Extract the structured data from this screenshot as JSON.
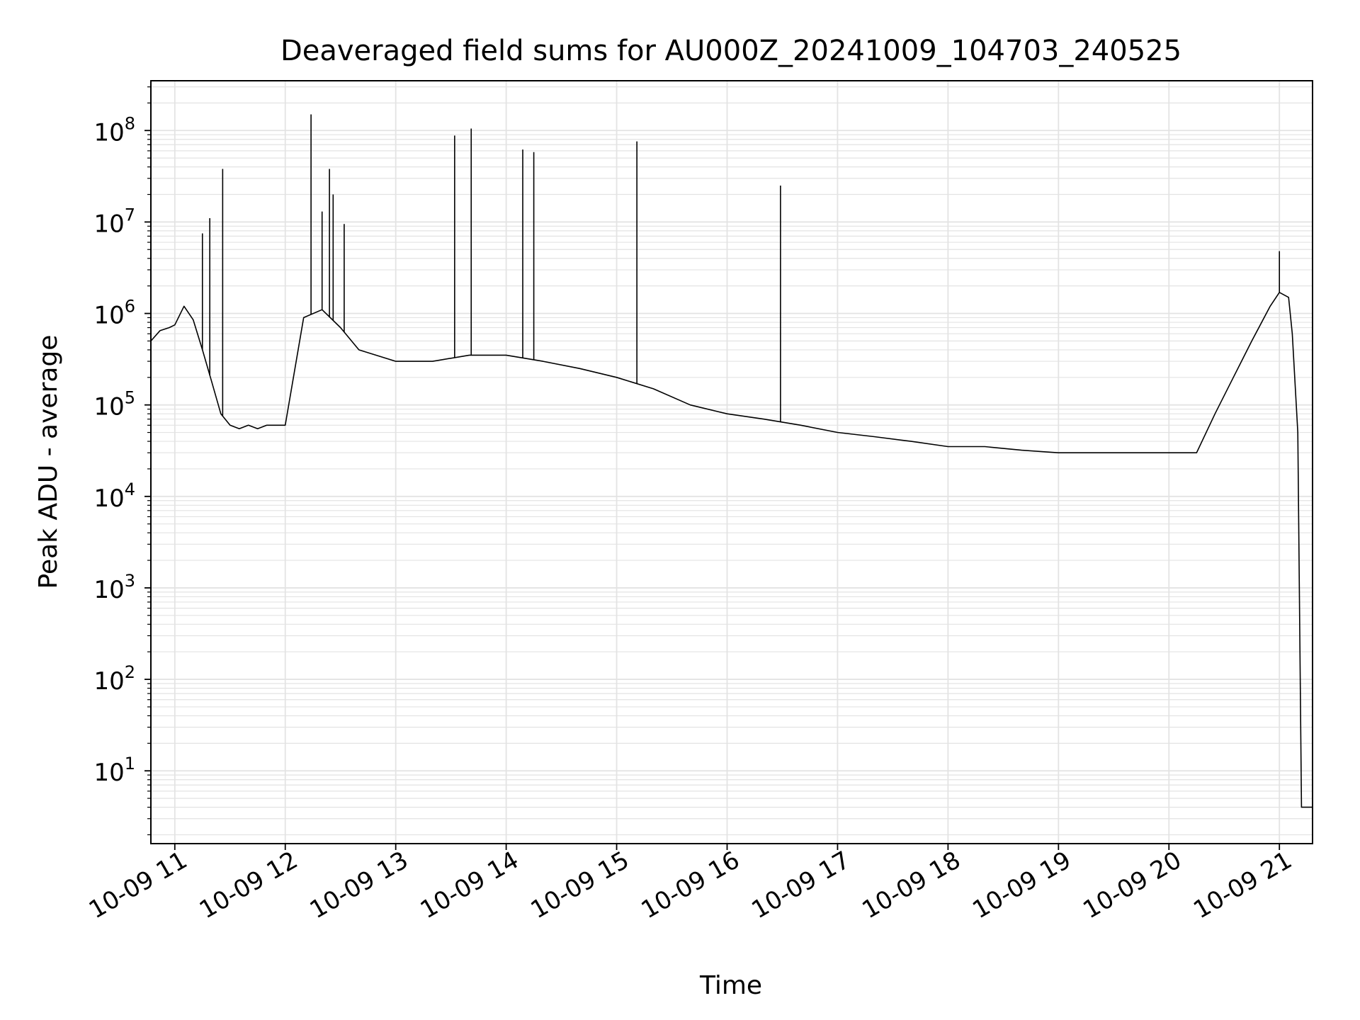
{
  "chart_data": {
    "type": "line",
    "title": "Deaveraged field sums for AU000Z_20241009_104703_240525",
    "xlabel": "Time",
    "ylabel": "Peak ADU - average",
    "yscale": "log",
    "ylim": [
      1.6,
      350000000
    ],
    "xlim": [
      "2024-10-09T10:47:00",
      "2024-10-09T21:18:00"
    ],
    "grid": true,
    "legend": "none",
    "line_color": "#000000",
    "grid_color": "#e3e3e3",
    "x_ticks": [
      {
        "label": "10-09 11",
        "value": "2024-10-09T11:00:00"
      },
      {
        "label": "10-09 12",
        "value": "2024-10-09T12:00:00"
      },
      {
        "label": "10-09 13",
        "value": "2024-10-09T13:00:00"
      },
      {
        "label": "10-09 14",
        "value": "2024-10-09T14:00:00"
      },
      {
        "label": "10-09 15",
        "value": "2024-10-09T15:00:00"
      },
      {
        "label": "10-09 16",
        "value": "2024-10-09T16:00:00"
      },
      {
        "label": "10-09 17",
        "value": "2024-10-09T17:00:00"
      },
      {
        "label": "10-09 18",
        "value": "2024-10-09T18:00:00"
      },
      {
        "label": "10-09 19",
        "value": "2024-10-09T19:00:00"
      },
      {
        "label": "10-09 20",
        "value": "2024-10-09T20:00:00"
      },
      {
        "label": "10-09 21",
        "value": "2024-10-09T21:00:00"
      }
    ],
    "y_ticks": [
      {
        "base": "10",
        "exp": "1",
        "value": 10
      },
      {
        "base": "10",
        "exp": "2",
        "value": 100
      },
      {
        "base": "10",
        "exp": "3",
        "value": 1000
      },
      {
        "base": "10",
        "exp": "4",
        "value": 10000
      },
      {
        "base": "10",
        "exp": "5",
        "value": 100000
      },
      {
        "base": "10",
        "exp": "6",
        "value": 1000000
      },
      {
        "base": "10",
        "exp": "7",
        "value": 10000000
      },
      {
        "base": "10",
        "exp": "8",
        "value": 100000000
      }
    ],
    "series": [
      {
        "x": [
          "2024-10-09T10:47:00",
          "2024-10-09T10:52:00",
          "2024-10-09T10:57:00",
          "2024-10-09T11:00:00",
          "2024-10-09T11:05:00",
          "2024-10-09T11:10:00",
          "2024-10-09T11:15:00",
          "2024-10-09T11:20:00",
          "2024-10-09T11:25:00",
          "2024-10-09T11:30:00",
          "2024-10-09T11:35:00",
          "2024-10-09T11:40:00",
          "2024-10-09T11:45:00",
          "2024-10-09T11:50:00",
          "2024-10-09T12:00:00",
          "2024-10-09T12:10:00",
          "2024-10-09T12:20:00",
          "2024-10-09T12:30:00",
          "2024-10-09T12:40:00",
          "2024-10-09T13:00:00",
          "2024-10-09T13:20:00",
          "2024-10-09T13:40:00",
          "2024-10-09T14:00:00",
          "2024-10-09T14:20:00",
          "2024-10-09T14:40:00",
          "2024-10-09T15:00:00",
          "2024-10-09T15:20:00",
          "2024-10-09T15:40:00",
          "2024-10-09T16:00:00",
          "2024-10-09T16:20:00",
          "2024-10-09T16:40:00",
          "2024-10-09T17:00:00",
          "2024-10-09T17:20:00",
          "2024-10-09T17:40:00",
          "2024-10-09T18:00:00",
          "2024-10-09T18:20:00",
          "2024-10-09T18:40:00",
          "2024-10-09T19:00:00",
          "2024-10-09T19:20:00",
          "2024-10-09T19:40:00",
          "2024-10-09T20:00:00",
          "2024-10-09T20:15:00",
          "2024-10-09T20:25:00",
          "2024-10-09T20:35:00",
          "2024-10-09T20:45:00",
          "2024-10-09T20:55:00",
          "2024-10-09T21:00:00",
          "2024-10-09T21:05:00",
          "2024-10-09T21:07:00",
          "2024-10-09T21:10:00",
          "2024-10-09T21:12:00",
          "2024-10-09T21:18:00"
        ],
        "y": [
          500000,
          650000,
          700000,
          750000,
          1200000,
          850000,
          400000,
          180000,
          80000,
          60000,
          55000,
          60000,
          55000,
          60000,
          60000,
          900000,
          1100000,
          700000,
          400000,
          300000,
          300000,
          350000,
          350000,
          300000,
          250000,
          200000,
          150000,
          100000,
          80000,
          70000,
          60000,
          50000,
          45000,
          40000,
          35000,
          35000,
          32000,
          30000,
          30000,
          30000,
          30000,
          30000,
          80000,
          200000,
          500000,
          1200000,
          1700000,
          1500000,
          600000,
          50000,
          4,
          4
        ]
      }
    ],
    "spikes": [
      {
        "x": "2024-10-09T11:15:00",
        "y": 7500000
      },
      {
        "x": "2024-10-09T11:19:00",
        "y": 11000000
      },
      {
        "x": "2024-10-09T11:26:00",
        "y": 38000000
      },
      {
        "x": "2024-10-09T12:14:00",
        "y": 150000000
      },
      {
        "x": "2024-10-09T12:20:00",
        "y": 13000000
      },
      {
        "x": "2024-10-09T12:24:00",
        "y": 38000000
      },
      {
        "x": "2024-10-09T12:26:00",
        "y": 20000000
      },
      {
        "x": "2024-10-09T12:32:00",
        "y": 9500000
      },
      {
        "x": "2024-10-09T13:32:00",
        "y": 88000000
      },
      {
        "x": "2024-10-09T13:41:00",
        "y": 105000000
      },
      {
        "x": "2024-10-09T14:09:00",
        "y": 62000000
      },
      {
        "x": "2024-10-09T14:15:00",
        "y": 58000000
      },
      {
        "x": "2024-10-09T15:11:00",
        "y": 76000000
      },
      {
        "x": "2024-10-09T16:29:00",
        "y": 25000000
      },
      {
        "x": "2024-10-09T21:00:00",
        "y": 4800000
      }
    ]
  }
}
